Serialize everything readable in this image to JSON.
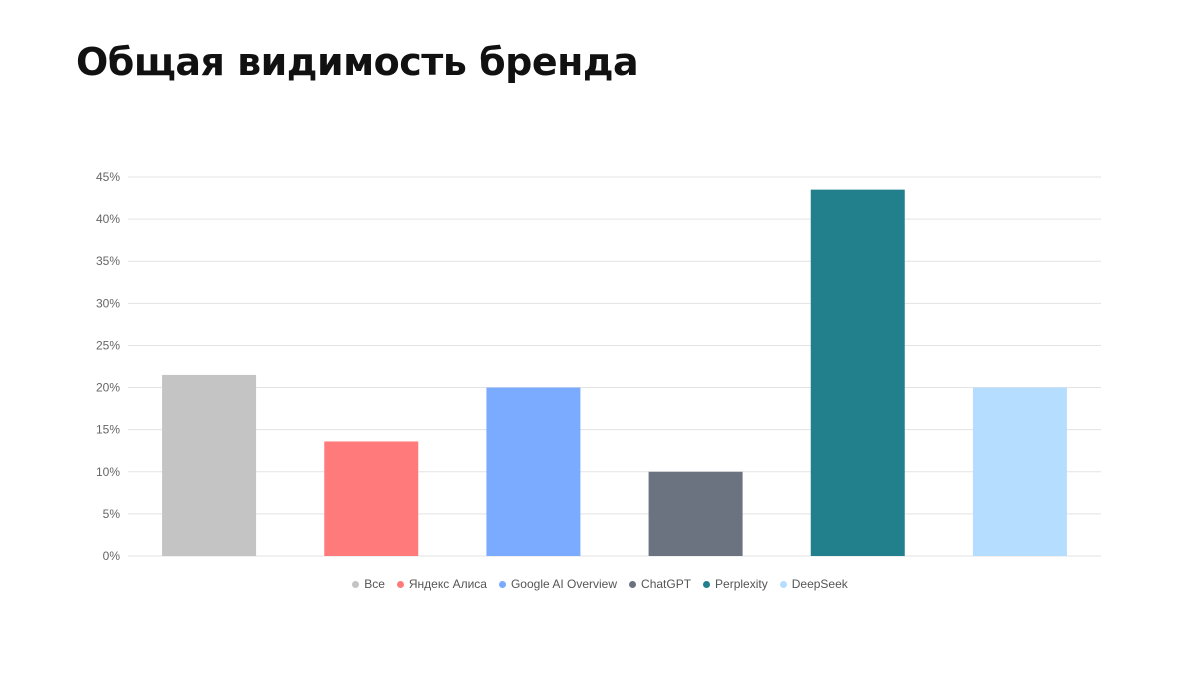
{
  "title": "Общая видимость бренда",
  "chart_data": {
    "type": "bar",
    "categories": [
      "Все",
      "Яндекс Алиса",
      "Google AI Overview",
      "ChatGPT",
      "Perplexity",
      "DeepSeek"
    ],
    "values": [
      21.5,
      13.6,
      20.0,
      10.0,
      43.5,
      20.0
    ],
    "colors": [
      "#c4c4c4",
      "#ff7b7b",
      "#7aabff",
      "#6b7280",
      "#227f8c",
      "#b5ddff"
    ],
    "y_ticks": [
      "0%",
      "5%",
      "10%",
      "15%",
      "20%",
      "25%",
      "30%",
      "35%",
      "40%",
      "45%"
    ],
    "ylim": [
      0,
      45
    ],
    "grid": true,
    "legend_position": "bottom"
  }
}
